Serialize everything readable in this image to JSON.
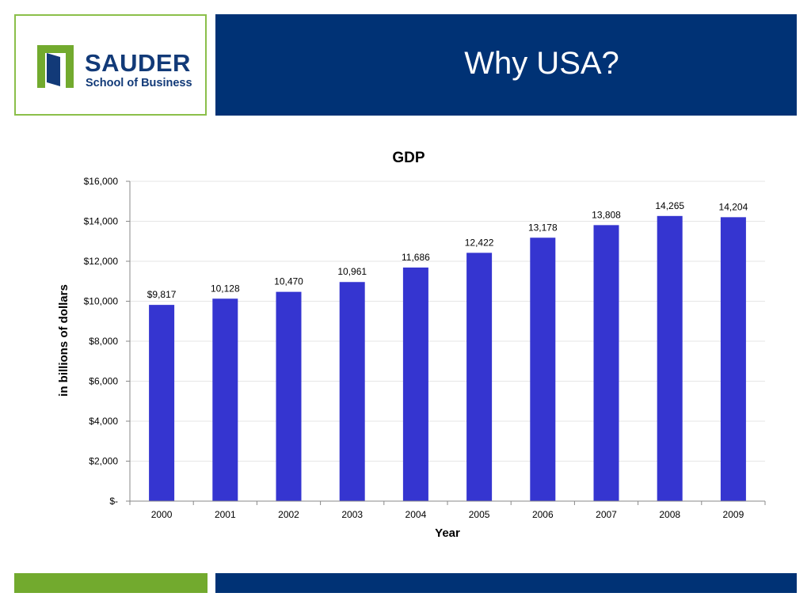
{
  "logo": {
    "title": "SAUDER",
    "subtitle": "School of Business"
  },
  "slide": {
    "title": "Why USA?"
  },
  "colors": {
    "header": "#003275",
    "accent_green": "#72aa2e",
    "bar": "#3535d0"
  },
  "chart_data": {
    "type": "bar",
    "title": "GDP",
    "xlabel": "Year",
    "ylabel": "in billions of dollars",
    "categories": [
      "2000",
      "2001",
      "2002",
      "2003",
      "2004",
      "2005",
      "2006",
      "2007",
      "2008",
      "2009"
    ],
    "values": [
      9817,
      10128,
      10470,
      10961,
      11686,
      12422,
      13178,
      13808,
      14265,
      14204
    ],
    "data_labels": [
      "$9,817",
      "10,128",
      "10,470",
      "10,961",
      "11,686",
      "12,422",
      "13,178",
      "13,808",
      "14,265",
      "14,204"
    ],
    "ylim": [
      0,
      16000
    ],
    "yticks": [
      0,
      2000,
      4000,
      6000,
      8000,
      10000,
      12000,
      14000,
      16000
    ],
    "ytick_labels": [
      "$-",
      "$2,000",
      "$4,000",
      "$6,000",
      "$8,000",
      "$10,000",
      "$12,000",
      "$14,000",
      "$16,000"
    ],
    "grid": true,
    "legend": "none"
  }
}
